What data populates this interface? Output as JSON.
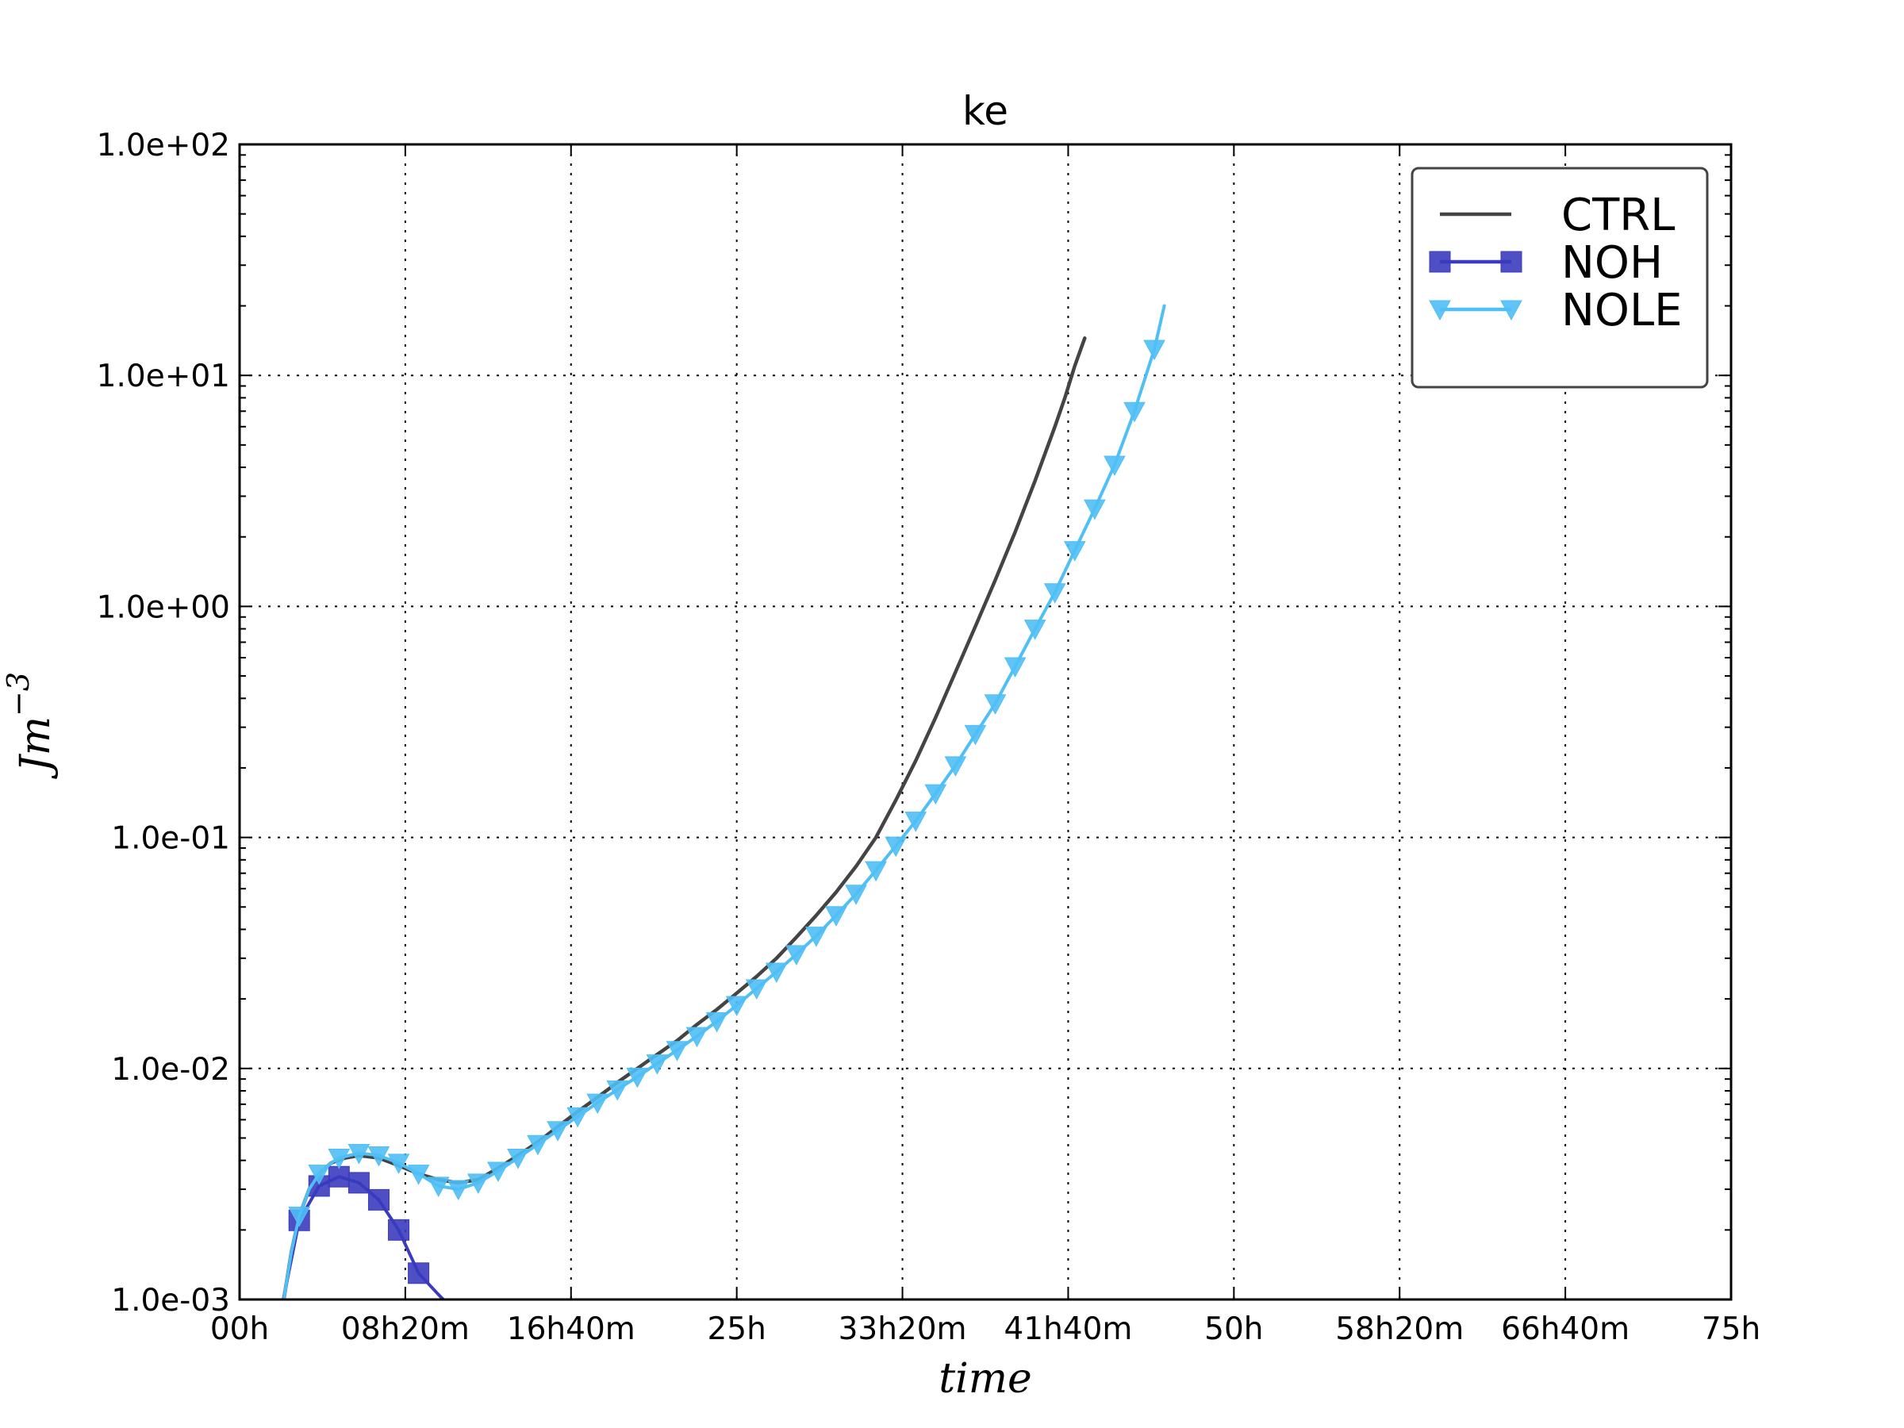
{
  "chart_data": {
    "type": "line",
    "title": "ke",
    "xlabel": "time",
    "ylabel": "Jm",
    "ylabel_exponent": "−3",
    "yscale": "log",
    "xlim": [
      0,
      75
    ],
    "ylim": [
      0.001,
      100
    ],
    "grid": true,
    "legend_position": "top-right",
    "x_ticks": [
      {
        "value": 0,
        "label": "00h"
      },
      {
        "value": 8.3333,
        "label": "08h20m"
      },
      {
        "value": 16.6667,
        "label": "16h40m"
      },
      {
        "value": 25,
        "label": "25h"
      },
      {
        "value": 33.3333,
        "label": "33h20m"
      },
      {
        "value": 41.6667,
        "label": "41h40m"
      },
      {
        "value": 50,
        "label": "50h"
      },
      {
        "value": 58.3333,
        "label": "58h20m"
      },
      {
        "value": 66.6667,
        "label": "66h40m"
      },
      {
        "value": 75,
        "label": "75h"
      }
    ],
    "y_ticks": [
      {
        "value": 0.001,
        "label": "1.0e-03"
      },
      {
        "value": 0.01,
        "label": "1.0e-02"
      },
      {
        "value": 0.1,
        "label": "1.0e-01"
      },
      {
        "value": 1,
        "label": "1.0e+00"
      },
      {
        "value": 10,
        "label": "1.0e+01"
      },
      {
        "value": 100,
        "label": "1.0e+02"
      }
    ],
    "series": [
      {
        "name": "CTRL",
        "color": "#444444",
        "marker": "none",
        "x": [
          2.2,
          2.6,
          3.0,
          3.5,
          4.0,
          4.6,
          5.3,
          6.0,
          7.0,
          8.0,
          9.0,
          10.0,
          11.0,
          12.0,
          13.0,
          14.0,
          15.0,
          16.0,
          17.0,
          18.0,
          19.0,
          20.0,
          21.0,
          22.0,
          23.0,
          24.0,
          25.0,
          26.0,
          27.0,
          28.0,
          29.0,
          30.0,
          31.0,
          32.0,
          33.0,
          34.0,
          35.0,
          36.0,
          37.0,
          38.0,
          39.0,
          40.0,
          41.0,
          41.5,
          42.0,
          42.5
        ],
        "values": [
          0.00097,
          0.0016,
          0.0023,
          0.003,
          0.0035,
          0.0039,
          0.0041,
          0.0042,
          0.0041,
          0.0038,
          0.0035,
          0.0033,
          0.0032,
          0.0033,
          0.0037,
          0.0042,
          0.0048,
          0.0056,
          0.0065,
          0.0075,
          0.0087,
          0.01,
          0.0115,
          0.0132,
          0.0155,
          0.018,
          0.0212,
          0.025,
          0.03,
          0.037,
          0.046,
          0.058,
          0.075,
          0.1,
          0.145,
          0.215,
          0.33,
          0.52,
          0.82,
          1.3,
          2.1,
          3.5,
          6.0,
          8.0,
          11.0,
          14.5
        ]
      },
      {
        "name": "NOH",
        "color": "#3b3bbf",
        "marker": "square",
        "x": [
          2.2,
          3.0,
          4.0,
          5.0,
          6.0,
          7.0,
          8.0,
          9.0,
          10.0,
          10.5
        ],
        "values": [
          0.001,
          0.0022,
          0.0031,
          0.0034,
          0.0032,
          0.0027,
          0.002,
          0.0013,
          0.00105,
          0.00095
        ],
        "markers_x": [
          3.0,
          4.0,
          5.0,
          6.0,
          7.0,
          8.0,
          9.0
        ]
      },
      {
        "name": "NOLE",
        "color": "#4fbff5",
        "marker": "triangle-down",
        "x": [
          2.2,
          2.6,
          3.0,
          3.5,
          4.0,
          4.6,
          5.0,
          6.0,
          7.0,
          8.0,
          9.0,
          10.0,
          11.0,
          12.0,
          13.0,
          14.0,
          15.0,
          16.0,
          17.0,
          18.0,
          19.0,
          20.0,
          21.0,
          22.0,
          23.0,
          24.0,
          25.0,
          26.0,
          27.0,
          28.0,
          29.0,
          30.0,
          31.0,
          32.0,
          33.0,
          34.0,
          35.0,
          36.0,
          37.0,
          38.0,
          39.0,
          40.0,
          41.0,
          42.0,
          43.0,
          44.0,
          45.0,
          46.0,
          46.5
        ],
        "values": [
          0.00097,
          0.0016,
          0.0023,
          0.003,
          0.0035,
          0.0039,
          0.0041,
          0.0043,
          0.0042,
          0.0039,
          0.0035,
          0.0031,
          0.003,
          0.0032,
          0.0036,
          0.0041,
          0.0047,
          0.0054,
          0.0062,
          0.0071,
          0.0081,
          0.0092,
          0.0105,
          0.012,
          0.0138,
          0.016,
          0.0188,
          0.0222,
          0.0262,
          0.0312,
          0.0375,
          0.046,
          0.057,
          0.072,
          0.092,
          0.118,
          0.155,
          0.205,
          0.28,
          0.38,
          0.55,
          0.8,
          1.15,
          1.75,
          2.65,
          4.1,
          7.0,
          13.0,
          20.0
        ],
        "markers_x": [
          3,
          4,
          5,
          6,
          7,
          8,
          9,
          10,
          11,
          12,
          13,
          14,
          15,
          16,
          17,
          18,
          19,
          20,
          21,
          22,
          23,
          24,
          25,
          26,
          27,
          28,
          29,
          30,
          31,
          32,
          33,
          34,
          35,
          36,
          37,
          38,
          39,
          40,
          41,
          42,
          43,
          44,
          45,
          46
        ]
      }
    ]
  }
}
